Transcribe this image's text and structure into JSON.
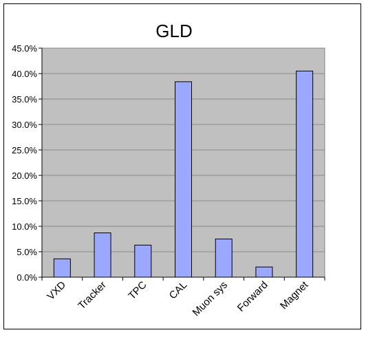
{
  "chart_data": {
    "type": "bar",
    "title": "GLD",
    "xlabel": "",
    "ylabel": "",
    "categories": [
      "VXD",
      "Tracker",
      "TPC",
      "CAL",
      "Muon sys",
      "Forward",
      "Magnet"
    ],
    "values": [
      3.6,
      8.7,
      6.3,
      38.4,
      7.5,
      2.0,
      40.5
    ],
    "value_unit": "percent",
    "ylim": [
      0,
      45
    ],
    "yticks": [
      "0.0%",
      "5.0%",
      "10.0%",
      "15.0%",
      "20.0%",
      "25.0%",
      "30.0%",
      "35.0%",
      "40.0%",
      "45.0%"
    ],
    "grid": true,
    "legend": "none"
  },
  "colors": {
    "plot_background": "#c0c0c0",
    "bar_fill": "#9aa8ff",
    "bar_stroke": "#000000",
    "gridline": "#8a8a8a"
  }
}
